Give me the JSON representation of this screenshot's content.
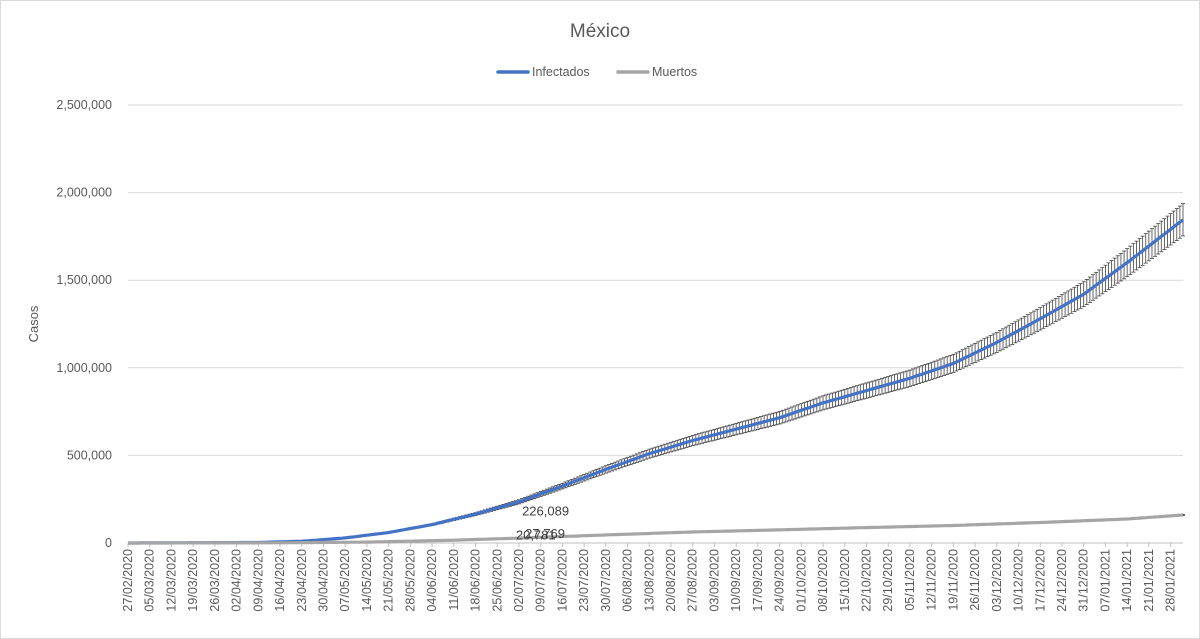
{
  "chart_data": {
    "type": "line",
    "title": "México",
    "xlabel": "",
    "ylabel": "Casos",
    "ylim": [
      0,
      2500000
    ],
    "yticks": [
      0,
      500000,
      1000000,
      1500000,
      2000000,
      2500000
    ],
    "ytick_labels": [
      "0",
      "500,000",
      "1,000,000",
      "1,500,000",
      "2,000,000",
      "2,500,000"
    ],
    "grid": true,
    "legend": "top-center",
    "x_start": "27/02/2020",
    "x_end": "01/02/2021",
    "x_tick_labels": [
      "27/02/2020",
      "05/03/2020",
      "12/03/2020",
      "19/03/2020",
      "26/03/2020",
      "02/04/2020",
      "09/04/2020",
      "16/04/2020",
      "23/04/2020",
      "30/04/2020",
      "07/05/2020",
      "14/05/2020",
      "21/05/2020",
      "28/05/2020",
      "04/06/2020",
      "11/06/2020",
      "18/06/2020",
      "25/06/2020",
      "02/07/2020",
      "09/07/2020",
      "16/07/2020",
      "23/07/2020",
      "30/07/2020",
      "06/08/2020",
      "13/08/2020",
      "20/08/2020",
      "27/08/2020",
      "03/09/2020",
      "10/09/2020",
      "17/09/2020",
      "24/09/2020",
      "01/10/2020",
      "08/10/2020",
      "15/10/2020",
      "22/10/2020",
      "29/10/2020",
      "05/11/2020",
      "12/11/2020",
      "19/11/2020",
      "26/11/2020",
      "03/12/2020",
      "10/12/2020",
      "17/12/2020",
      "24/12/2020",
      "31/12/2020",
      "07/01/2021",
      "14/01/2021",
      "21/01/2021",
      "28/01/2021"
    ],
    "series": [
      {
        "name": "Infectados",
        "color": "#4472c4",
        "error_bars": true,
        "error_pct": 0.05,
        "points": [
          [
            "27/02/2020",
            0
          ],
          [
            "09/04/2020",
            3000
          ],
          [
            "23/04/2020",
            10000
          ],
          [
            "07/05/2020",
            29000
          ],
          [
            "21/05/2020",
            60000
          ],
          [
            "04/06/2020",
            105000
          ],
          [
            "18/06/2020",
            165000
          ],
          [
            "02/07/2020",
            235000
          ],
          [
            "16/07/2020",
            325000
          ],
          [
            "30/07/2020",
            420000
          ],
          [
            "13/08/2020",
            510000
          ],
          [
            "27/08/2020",
            585000
          ],
          [
            "10/09/2020",
            650000
          ],
          [
            "24/09/2020",
            715000
          ],
          [
            "08/10/2020",
            800000
          ],
          [
            "22/10/2020",
            870000
          ],
          [
            "05/11/2020",
            940000
          ],
          [
            "19/11/2020",
            1025000
          ],
          [
            "03/12/2020",
            1145000
          ],
          [
            "17/12/2020",
            1280000
          ],
          [
            "31/12/2020",
            1420000
          ],
          [
            "14/01/2021",
            1600000
          ],
          [
            "01/02/2021",
            1845000
          ]
        ]
      },
      {
        "name": "Muertos",
        "color": "#a5a5a5",
        "error_bars": true,
        "error_pct": 0.02,
        "points": [
          [
            "27/02/2020",
            0
          ],
          [
            "16/04/2020",
            1000
          ],
          [
            "14/05/2020",
            5000
          ],
          [
            "11/06/2020",
            16000
          ],
          [
            "02/07/2020",
            28000
          ],
          [
            "30/07/2020",
            46000
          ],
          [
            "27/08/2020",
            63000
          ],
          [
            "24/09/2020",
            75000
          ],
          [
            "22/10/2020",
            88000
          ],
          [
            "19/11/2020",
            100000
          ],
          [
            "17/12/2020",
            117000
          ],
          [
            "14/01/2021",
            137000
          ],
          [
            "01/02/2021",
            160000
          ]
        ]
      }
    ],
    "annotations": [
      {
        "text": "226,089",
        "x": "03/07/2020",
        "y": 226089
      },
      {
        "text": "20,781",
        "x": "01/07/2020",
        "y": 20781
      },
      {
        "text": "27,769",
        "x": "04/07/2020",
        "y": 27769
      }
    ]
  }
}
